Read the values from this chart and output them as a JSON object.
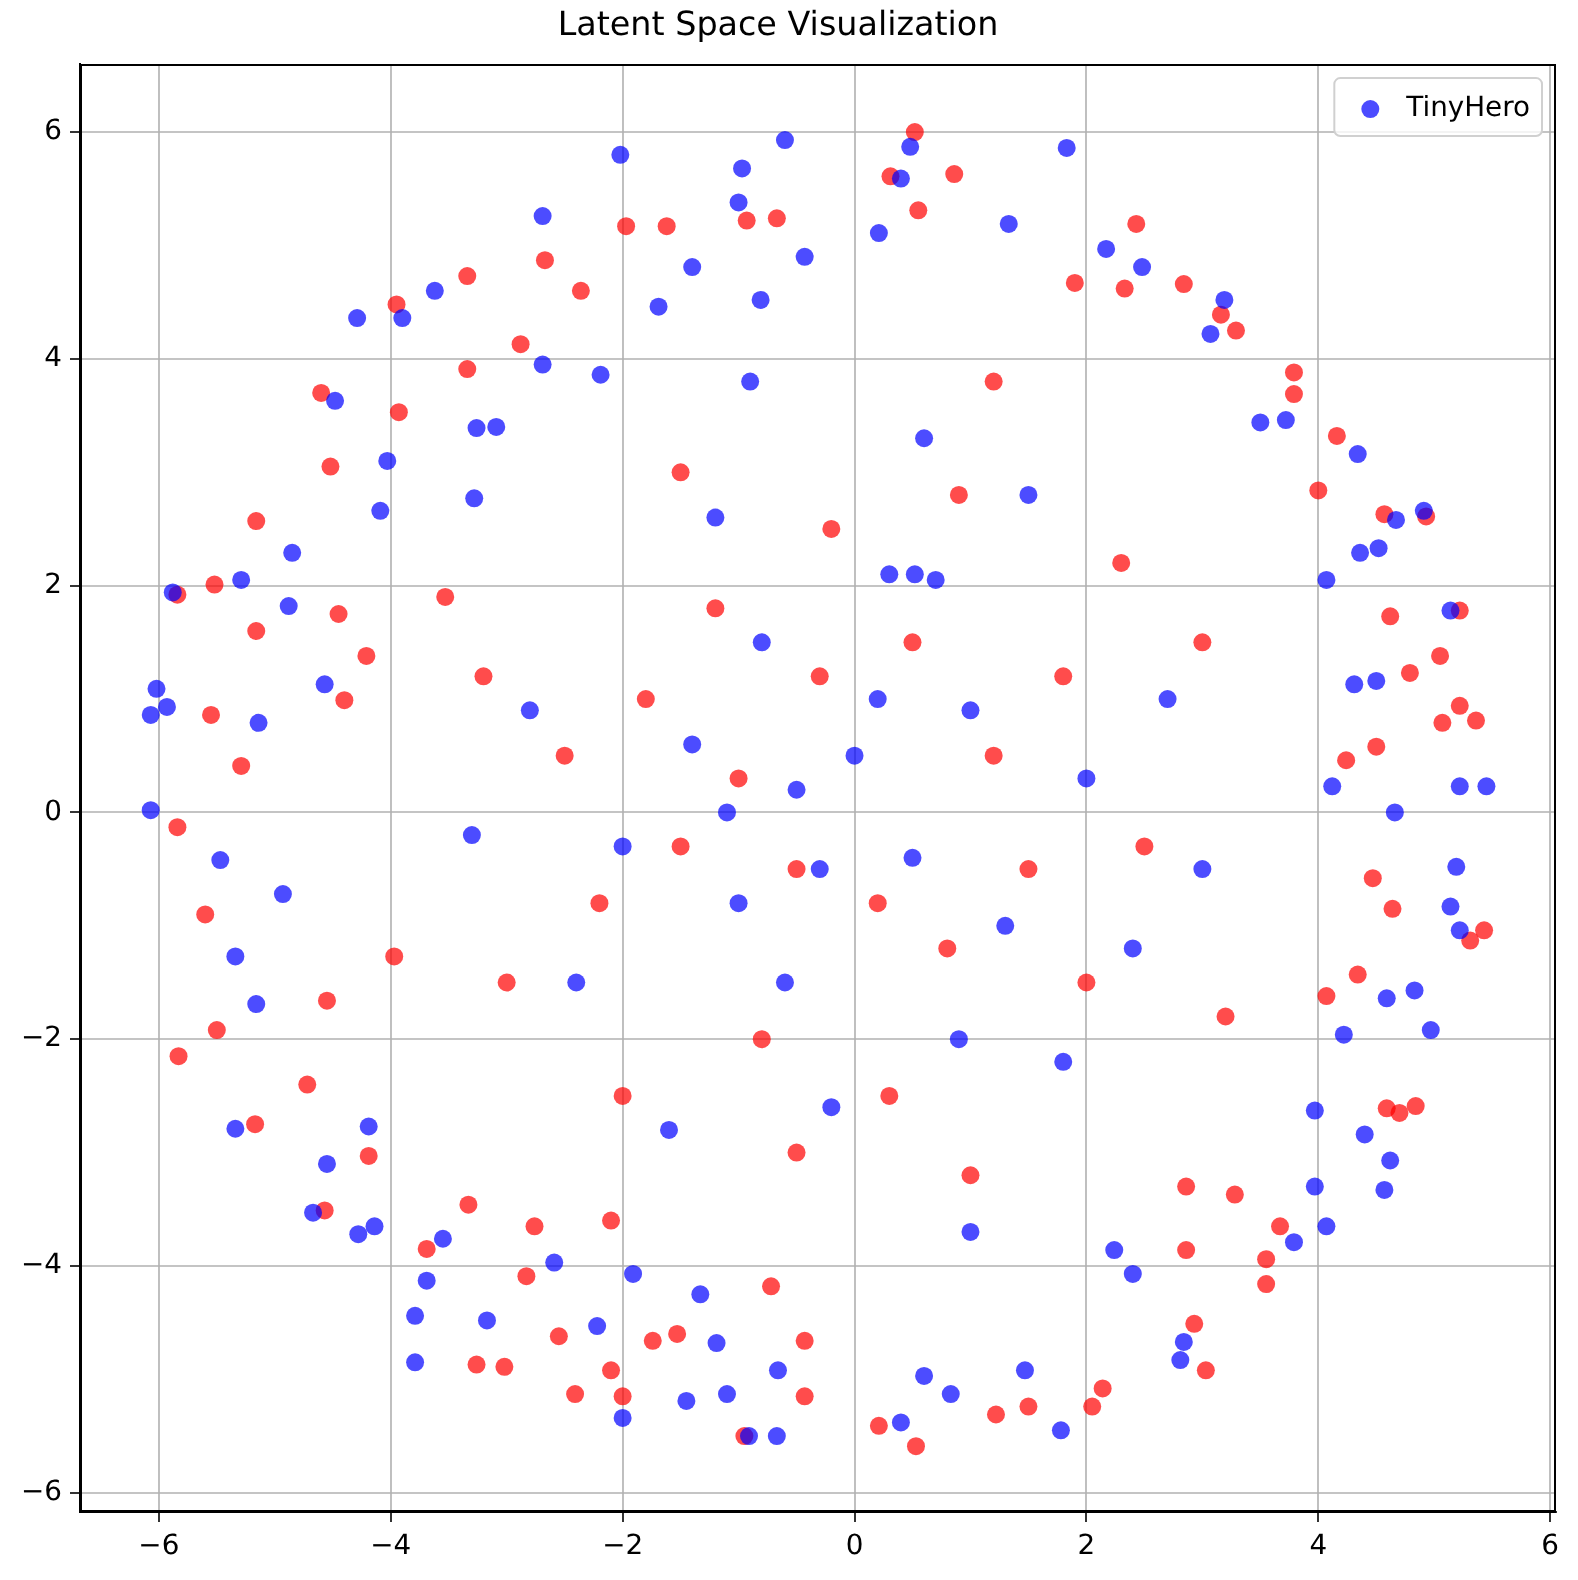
{
  "chart_data": {
    "type": "scatter",
    "title": "Latent Space Visualization",
    "xlim": [
      -6.68,
      6.05
    ],
    "ylim": [
      -6.17,
      6.6
    ],
    "xticks": [
      -6,
      -4,
      -2,
      0,
      2,
      4,
      6
    ],
    "yticks": [
      -6,
      -4,
      -2,
      0,
      2,
      4,
      6
    ],
    "grid": true,
    "legend": "top right",
    "marker": "circle",
    "series": [
      {
        "color": "#ff0000",
        "x": [
          0.52,
          2.43,
          -1.97,
          -2.67,
          -3.34,
          -3.95,
          -4.6,
          -5.16,
          -4.52,
          -5.84,
          -5.52,
          -5.55,
          -5.16,
          -5.84,
          -5.6,
          -5.83,
          -5.17,
          -5.5,
          -4.72,
          -4.57,
          -4.19,
          -3.26,
          -3.02,
          -2.41,
          -2.0,
          -2.1,
          -0.95,
          -0.43,
          0.21,
          0.53,
          1.22,
          1.5,
          2.05,
          2.14,
          3.03,
          2.93,
          3.55,
          3.55,
          3.67,
          3.28,
          2.86,
          2.86,
          4.59,
          4.84,
          4.7,
          4.34,
          4.07,
          5.43,
          5.31,
          4.64,
          4.47,
          5.36,
          5.22,
          5.07,
          4.79,
          5.05,
          4.62,
          5.22,
          4.93,
          4.57,
          4.16,
          4.0,
          3.79,
          3.79,
          3.29,
          3.16,
          2.84,
          2.33,
          1.9,
          0.86,
          0.55,
          0.31,
          4.5,
          4.24,
          -2.36,
          -1.62,
          -0.67,
          -0.93,
          -2.88,
          -3.34,
          -3.93,
          -3.53,
          -4.45,
          -4.21,
          -4.4,
          -5.29,
          -4.55,
          -3.97,
          -3.33,
          -3.69,
          -2.76,
          -2.83,
          -2.55,
          -1.74,
          -1.53,
          -0.43,
          -0.72,
          -2.1,
          -0.5,
          0.2,
          -1.0,
          0.8,
          -1.5,
          1.2,
          -0.3,
          0.5,
          -1.2,
          1.5,
          -2.2,
          2.0,
          -0.8,
          0.3,
          -1.8,
          1.8,
          -2.5,
          2.5,
          -0.2,
          0.9,
          -1.5,
          1.2,
          -3.0,
          3.0,
          -0.5,
          1.0,
          -2.0,
          2.3,
          -3.2,
          3.2
        ],
        "values": [
          6.0,
          5.19,
          5.17,
          4.87,
          4.73,
          4.48,
          3.7,
          2.57,
          3.05,
          1.92,
          2.01,
          0.86,
          1.6,
          -0.13,
          -0.9,
          -2.15,
          -2.75,
          -1.92,
          -2.4,
          -3.51,
          -3.03,
          -4.87,
          -4.89,
          -5.13,
          -5.15,
          -4.92,
          -5.5,
          -5.15,
          -5.41,
          -5.59,
          -5.31,
          -5.24,
          -5.24,
          -5.08,
          -4.92,
          -4.51,
          -4.16,
          -3.94,
          -3.65,
          -3.37,
          -3.3,
          -3.86,
          -2.61,
          -2.59,
          -2.65,
          -1.43,
          -1.62,
          -1.04,
          -1.13,
          -0.85,
          -0.58,
          0.81,
          0.94,
          0.79,
          1.23,
          1.38,
          1.73,
          1.78,
          2.61,
          2.63,
          3.32,
          2.84,
          3.88,
          3.69,
          4.25,
          4.39,
          4.66,
          4.62,
          4.67,
          5.63,
          5.31,
          5.61,
          0.58,
          0.46,
          4.6,
          5.17,
          5.24,
          5.22,
          4.13,
          3.91,
          3.53,
          1.9,
          1.75,
          1.38,
          0.99,
          0.41,
          -1.66,
          -1.27,
          -3.46,
          -3.85,
          -3.65,
          -4.09,
          -4.62,
          -4.66,
          -4.6,
          -4.66,
          -4.18,
          -3.6,
          -0.5,
          -0.8,
          0.3,
          -1.2,
          -0.3,
          0.5,
          1.2,
          1.5,
          1.8,
          -0.5,
          -0.8,
          -1.5,
          -2.0,
          -2.5,
          1.0,
          1.2,
          0.5,
          -0.3,
          2.5,
          2.8,
          3.0,
          3.8,
          -1.5,
          1.5,
          -3.0,
          -3.2,
          -2.5,
          2.2,
          1.2,
          -1.8
        ]
      },
      {
        "name": "TinyHero",
        "color": "#0000ff",
        "x": [
          -0.6,
          -2.02,
          -0.97,
          -1.0,
          -2.69,
          -3.62,
          -4.29,
          -3.9,
          -4.48,
          -4.03,
          -4.85,
          -5.29,
          -5.88,
          -4.88,
          -6.02,
          -6.07,
          -5.93,
          -5.14,
          -4.57,
          -6.07,
          -4.09,
          -3.28,
          -3.26,
          -3.09,
          -2.69,
          -2.19,
          -1.69,
          -1.4,
          -0.81,
          -0.43,
          -5.47,
          -5.34,
          -5.16,
          -5.34,
          -4.93,
          -4.67,
          -4.28,
          -4.14,
          -4.55,
          -4.19,
          -3.79,
          -3.79,
          -3.69,
          -3.17,
          -3.55,
          -2.59,
          -2.22,
          -2.0,
          -1.45,
          -1.1,
          -0.91,
          -0.67,
          -0.66,
          -1.19,
          -1.91,
          -1.33,
          0.4,
          1.78,
          0.83,
          0.6,
          1.47,
          2.81,
          2.84,
          2.4,
          2.24,
          3.79,
          4.07,
          3.97,
          4.57,
          4.62,
          4.4,
          3.97,
          4.97,
          4.83,
          5.19,
          5.22,
          5.14,
          4.59,
          4.22,
          5.45,
          5.22,
          5.14,
          4.5,
          4.31,
          4.91,
          4.67,
          4.36,
          4.52,
          4.34,
          3.72,
          3.5,
          3.19,
          3.07,
          1.83,
          0.48,
          0.4,
          1.33,
          2.17,
          2.48,
          0.21,
          4.07,
          4.12,
          4.66,
          0.52,
          0.7,
          0.3,
          -0.3,
          -0.5,
          0.5,
          -1.0,
          1.0,
          -1.4,
          0.2,
          -0.8,
          1.3,
          -2.0,
          2.0,
          -0.6,
          0.9,
          -1.2,
          1.5,
          -2.4,
          2.4,
          -0.2,
          1.8,
          -2.8,
          3.0,
          -1.6,
          0.6,
          -3.3,
          2.7,
          -0.9,
          1.0,
          -1.1,
          0.0
        ],
        "values": [
          5.93,
          5.8,
          5.68,
          5.38,
          5.26,
          4.6,
          4.36,
          4.36,
          3.63,
          3.1,
          2.29,
          2.05,
          1.94,
          1.82,
          1.09,
          0.86,
          0.93,
          0.79,
          1.13,
          0.02,
          2.66,
          2.77,
          3.39,
          3.4,
          3.95,
          3.86,
          4.46,
          4.81,
          4.52,
          4.9,
          -0.42,
          -1.27,
          -1.69,
          -2.79,
          -0.72,
          -3.53,
          -3.72,
          -3.65,
          -3.1,
          -2.77,
          -4.44,
          -4.85,
          -4.13,
          -4.48,
          -3.76,
          -3.97,
          -4.53,
          -5.34,
          -5.19,
          -5.13,
          -5.5,
          -5.5,
          -4.92,
          -4.68,
          -4.07,
          -4.25,
          -5.38,
          -5.45,
          -5.13,
          -4.97,
          -4.92,
          -4.83,
          -4.67,
          -4.07,
          -3.86,
          -3.79,
          -3.65,
          -3.3,
          -3.33,
          -3.07,
          -2.84,
          -2.63,
          -1.92,
          -1.57,
          -0.48,
          -1.04,
          -0.83,
          -1.64,
          -1.96,
          0.23,
          0.23,
          1.78,
          1.16,
          1.13,
          2.66,
          2.58,
          2.29,
          2.33,
          3.16,
          3.46,
          3.44,
          4.52,
          4.22,
          5.86,
          5.87,
          5.59,
          5.19,
          4.97,
          4.81,
          5.11,
          2.05,
          0.23,
          0.0,
          2.1,
          2.05,
          2.1,
          -0.5,
          0.2,
          -0.4,
          -0.8,
          0.9,
          0.6,
          1.0,
          1.5,
          -1.0,
          -0.3,
          0.3,
          -1.5,
          -2.0,
          2.6,
          2.8,
          -1.5,
          -1.2,
          -2.6,
          -2.2,
          0.9,
          -0.5,
          -2.8,
          3.3,
          -0.2,
          1.0,
          3.8,
          -3.7,
          0.0,
          0.5
        ]
      }
    ]
  }
}
